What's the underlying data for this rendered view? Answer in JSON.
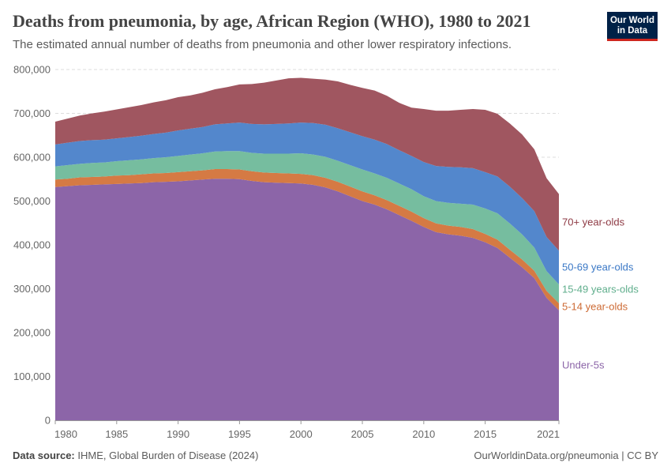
{
  "header": {
    "title": "Deaths from pneumonia, by age, African Region (WHO), 1980 to 2021",
    "subtitle": "The estimated annual number of deaths from pneumonia and other lower respiratory infections."
  },
  "logo": {
    "line1": "Our World",
    "line2": "in Data"
  },
  "footer": {
    "source_label": "Data source:",
    "source_text": "IHME, Global Burden of Disease (2024)",
    "url": "OurWorldinData.org/pneumonia | CC BY"
  },
  "chart_data": {
    "type": "area",
    "stacked": true,
    "title": "Deaths from pneumonia, by age, African Region (WHO), 1980 to 2021",
    "xlabel": "",
    "ylabel": "",
    "xlim": [
      1980,
      2021
    ],
    "ylim": [
      0,
      800000
    ],
    "grid": true,
    "x": [
      1980,
      1981,
      1982,
      1983,
      1984,
      1985,
      1986,
      1987,
      1988,
      1989,
      1990,
      1991,
      1992,
      1993,
      1994,
      1995,
      1996,
      1997,
      1998,
      1999,
      2000,
      2001,
      2002,
      2003,
      2004,
      2005,
      2006,
      2007,
      2008,
      2009,
      2010,
      2011,
      2012,
      2013,
      2014,
      2015,
      2016,
      2017,
      2018,
      2019,
      2020,
      2021
    ],
    "xticks": [
      1980,
      1985,
      1990,
      1995,
      2000,
      2005,
      2010,
      2015,
      2021
    ],
    "xtick_labels": [
      "1980",
      "1985",
      "1990",
      "1995",
      "2000",
      "2005",
      "2010",
      "2015",
      "2021"
    ],
    "yticks": [
      0,
      100000,
      200000,
      300000,
      400000,
      500000,
      600000,
      700000,
      800000
    ],
    "ytick_labels": [
      "0",
      "100,000",
      "200,000",
      "300,000",
      "400,000",
      "500,000",
      "600,000",
      "700,000",
      "800,000"
    ],
    "series": [
      {
        "name": "Under-5s",
        "label": "Under-5s",
        "color": "#8c65a8",
        "values": [
          532000,
          534000,
          536000,
          537000,
          538000,
          539000,
          540000,
          541000,
          543000,
          544000,
          545000,
          547000,
          549000,
          551000,
          551000,
          550000,
          546000,
          543000,
          542000,
          541000,
          540000,
          537000,
          531000,
          522000,
          511000,
          500000,
          492000,
          481000,
          468000,
          455000,
          441000,
          429000,
          424000,
          421000,
          416000,
          406000,
          393000,
          371000,
          349000,
          324000,
          279000,
          251000
        ]
      },
      {
        "name": "5-14 year-olds",
        "label": "5-14 year-olds",
        "color": "#d57a44",
        "values": [
          17000,
          17000,
          18000,
          18000,
          18000,
          19000,
          19000,
          20000,
          20000,
          20000,
          21000,
          21000,
          21000,
          22000,
          22000,
          22000,
          22000,
          22000,
          22000,
          22000,
          22000,
          22000,
          22000,
          22000,
          22000,
          22000,
          21000,
          21000,
          21000,
          21000,
          20000,
          20000,
          20000,
          20000,
          20000,
          19000,
          19000,
          18000,
          18000,
          17000,
          16000,
          16000
        ]
      },
      {
        "name": "15-49 years-olds",
        "label": "15-49 years-olds",
        "color": "#76bd9f",
        "values": [
          30000,
          31000,
          31000,
          32000,
          32000,
          33000,
          34000,
          34000,
          35000,
          36000,
          37000,
          38000,
          39000,
          40000,
          41000,
          42000,
          42000,
          43000,
          44000,
          45000,
          47000,
          47000,
          48000,
          48000,
          49000,
          50000,
          50000,
          51000,
          51000,
          51000,
          50000,
          51000,
          52000,
          53000,
          56000,
          58000,
          60000,
          60000,
          57000,
          53000,
          45000,
          43000
        ]
      },
      {
        "name": "50-69 year-olds",
        "label": "50-69 year-olds",
        "color": "#5387cc",
        "values": [
          50000,
          51000,
          52000,
          52000,
          52000,
          52000,
          53000,
          54000,
          55000,
          56000,
          58000,
          59000,
          60000,
          62000,
          63000,
          65000,
          66000,
          67000,
          68000,
          69000,
          70000,
          72000,
          73000,
          74000,
          75000,
          76000,
          77000,
          77000,
          76000,
          76000,
          78000,
          80000,
          82000,
          83000,
          83000,
          83000,
          84000,
          84000,
          83000,
          83000,
          78000,
          77000
        ]
      },
      {
        "name": "70+ year-olds",
        "label": "70+ year-olds",
        "color": "#a05660",
        "values": [
          52000,
          55000,
          58000,
          61000,
          64000,
          66000,
          68000,
          70000,
          72000,
          74000,
          76000,
          76000,
          78000,
          80000,
          83000,
          87000,
          91000,
          95000,
          99000,
          103000,
          102000,
          101000,
          103000,
          107000,
          108000,
          110000,
          112000,
          110000,
          108000,
          110000,
          121000,
          126000,
          128000,
          131000,
          135000,
          142000,
          143000,
          144000,
          145000,
          141000,
          134000,
          129000
        ]
      }
    ]
  }
}
